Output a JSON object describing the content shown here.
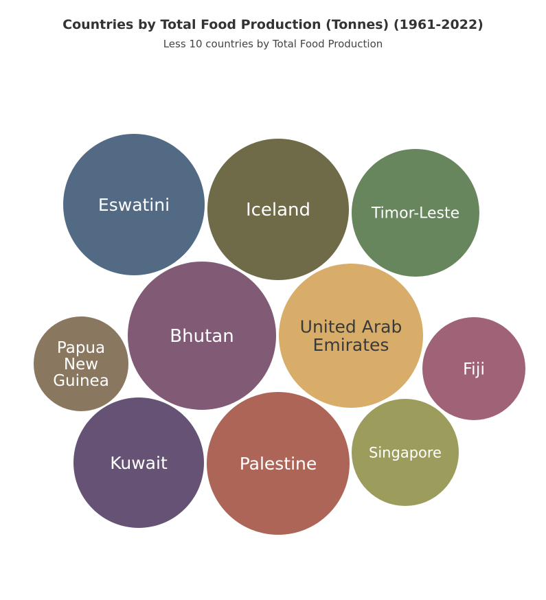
{
  "chart_data": {
    "type": "bubble",
    "title": "Countries by Total Food Production (Tonnes) (1961-2022)",
    "subtitle": "Less 10 countries by Total Food Production",
    "series": [
      {
        "name": "Eswatini",
        "color": "#536A84"
      },
      {
        "name": "Iceland",
        "color": "#6F6B49"
      },
      {
        "name": "Timor-Leste",
        "color": "#67865D"
      },
      {
        "name": "Bhutan",
        "color": "#815A75"
      },
      {
        "name": "United Arab Emirates",
        "color": "#D8AC69"
      },
      {
        "name": "Papua New Guinea",
        "color": "#8A7760"
      },
      {
        "name": "Fiji",
        "color": "#A06276"
      },
      {
        "name": "Kuwait",
        "color": "#655275"
      },
      {
        "name": "Palestine",
        "color": "#AD6557"
      },
      {
        "name": "Singapore",
        "color": "#9C9C5C"
      }
    ]
  }
}
